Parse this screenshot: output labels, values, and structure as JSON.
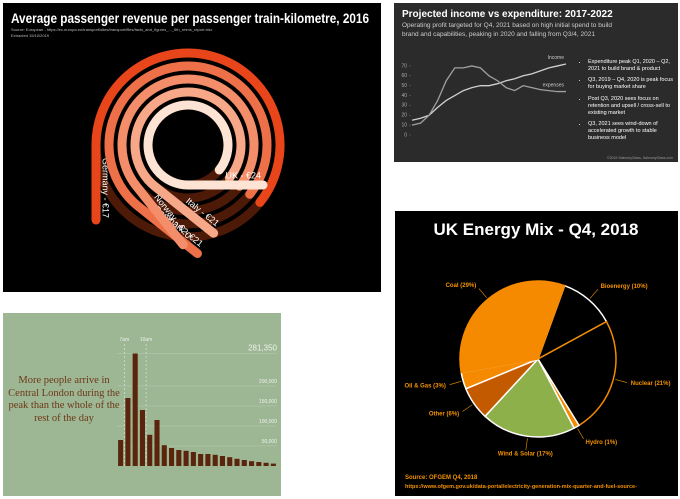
{
  "chart_data": [
    {
      "type": "radial_bar",
      "title": "Average passenger revenue per passenger train-kilometre, 2016",
      "source": "Source: European - https://ec.europa.eu/transport/sites/transport/files/facts_and_figures_..._6th_rmms_report.xlsx",
      "extracted": "Extracted 19/10/2019",
      "categories": [
        "UK - €24",
        "Italy - €21",
        "Norway - €20",
        "Denmark - €21",
        "Germany - €17"
      ],
      "values": [
        24,
        21,
        20,
        21,
        17
      ],
      "colors": [
        "#fde3d3",
        "#f6a889",
        "#f38d6a",
        "#ee7048",
        "#e8451a"
      ],
      "track_color": "#4e1a08"
    },
    {
      "type": "line",
      "title": "Projected income vs expenditure: 2017-2022",
      "subtitle": "Operating profit targeted for Q4, 2021 based on high initial spend to build brand and capabilities, peaking in 2020 and falling from Q3/4, 2021",
      "x": [
        1,
        2,
        3,
        4,
        5,
        6,
        7,
        8,
        9,
        10,
        11,
        12,
        13,
        14,
        15,
        16,
        17,
        18,
        19
      ],
      "xlim": [
        1,
        19
      ],
      "series": [
        {
          "name": "Income",
          "color": "#d0d0d0",
          "values": [
            15,
            17,
            20,
            28,
            35,
            40,
            45,
            48,
            50,
            50,
            52,
            55,
            57,
            60,
            62,
            65,
            68,
            70,
            72
          ]
        },
        {
          "name": "expenses",
          "color": "#a0a0a0",
          "values": [
            10,
            12,
            20,
            35,
            55,
            68,
            68,
            70,
            68,
            60,
            55,
            48,
            45,
            50,
            48,
            46,
            45,
            44,
            44
          ]
        }
      ],
      "ylim": [
        0,
        75
      ],
      "yticks": [
        0,
        10,
        20,
        30,
        40,
        50,
        60,
        70
      ],
      "notes": [
        "Expenditure peak Q1, 2020 – Q2, 2021 to build brand & product",
        "Q3, 2019 – Q4, 2020 is peak focus for buying market share",
        "Post Q3, 2020 sees focus on retention and upsell / cross-sell to existing market",
        "Q3, 2021 sees wind-down of accelerated growth to stable business model"
      ],
      "footer": "©2019 SalmonyGlass, SalmonyGlass.com"
    },
    {
      "type": "bar",
      "annotation": "More people arrive in Central London during the peak than the whole of the rest of the day",
      "markers": [
        "7am",
        "10am"
      ],
      "categories": [
        null,
        null,
        null,
        null,
        null,
        null,
        null,
        null,
        null,
        null,
        null,
        null,
        null,
        null,
        null,
        null,
        null,
        null,
        null,
        null,
        null,
        null
      ],
      "values": [
        65000,
        170000,
        281350,
        140000,
        78000,
        115000,
        52000,
        45000,
        40000,
        38000,
        35000,
        30000,
        30000,
        28000,
        25000,
        22000,
        18000,
        15000,
        12000,
        10000,
        8000,
        6000
      ],
      "color": "#5a250c",
      "ylim": [
        0,
        300000
      ],
      "yticks": [
        {
          "value": 50000,
          "label": "50,000"
        },
        {
          "value": 100000,
          "label": "100,000"
        },
        {
          "value": 150000,
          "label": "150,000"
        },
        {
          "value": 200000,
          "label": "200,000"
        },
        {
          "value": 281350,
          "label": "281,350"
        }
      ],
      "grid": true
    },
    {
      "type": "pie",
      "title": "UK Energy Mix - Q4, 2018",
      "categories": [
        "Bioenergy (10%)",
        "Nuclear (21%)",
        "Hydro (1%)",
        "Wind & Solar (17%)",
        "Other (6%)",
        "Oil & Gas (3%)",
        "Coal (29%)"
      ],
      "values": [
        10,
        21,
        1,
        17,
        6,
        3,
        29
      ],
      "colors": [
        "#000000",
        "#000000",
        "#f58a00",
        "#8db04a",
        "#c45a00",
        "#f58a00",
        "#f58a00"
      ],
      "strokes": [
        "#ffffff",
        "#f58a00",
        "#ffffff",
        "#ffffff",
        "#ffffff",
        "#ffffff",
        "#f58a00"
      ],
      "source": "Source: OFGEM Q4, 2018",
      "source_url": "https://www.ofgem.gov.uk/data-portal/electricity-generation-mix-quarter-and-fuel-source-"
    }
  ]
}
